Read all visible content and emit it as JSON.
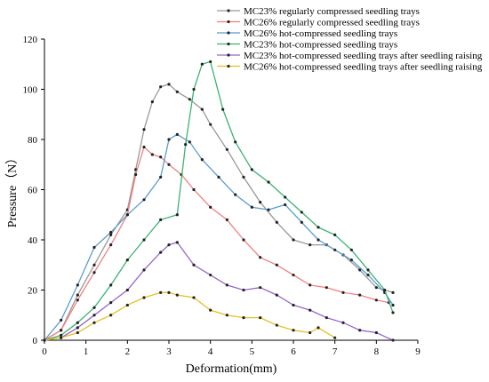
{
  "chart_data": {
    "type": "line",
    "xlabel": "Deformation(mm)",
    "ylabel": "Pressure（N）",
    "xlim": [
      0,
      9
    ],
    "ylim": [
      0,
      120
    ],
    "xticks": [
      0,
      1,
      2,
      3,
      4,
      5,
      6,
      7,
      8,
      9
    ],
    "yticks": [
      0,
      20,
      40,
      60,
      80,
      100,
      120
    ],
    "grid": false,
    "legend_position": "top-right",
    "series": [
      {
        "name": "MC23% regularly compressed seedling trays",
        "color": "#999999",
        "x": [
          0.0,
          0.4,
          0.8,
          1.2,
          1.6,
          2.0,
          2.2,
          2.4,
          2.6,
          2.8,
          3.0,
          3.2,
          3.5,
          3.8,
          4.0,
          4.4,
          4.8,
          5.2,
          5.6,
          6.0,
          6.4,
          6.8,
          7.2,
          7.6,
          8.0,
          8.4
        ],
        "y": [
          0,
          4,
          18,
          30,
          42,
          52,
          68,
          84,
          95,
          101,
          102,
          99,
          96,
          92,
          86,
          76,
          65,
          55,
          47,
          40,
          38,
          38,
          34,
          28,
          21,
          19
        ]
      },
      {
        "name": "MC26% regularly compressed seedling trays",
        "color": "#f08080",
        "x": [
          0.0,
          0.4,
          0.8,
          1.2,
          1.6,
          2.0,
          2.2,
          2.4,
          2.6,
          2.8,
          3.0,
          3.3,
          3.6,
          4.0,
          4.4,
          4.8,
          5.2,
          5.6,
          6.0,
          6.4,
          6.8,
          7.2,
          7.6,
          8.0,
          8.3
        ],
        "y": [
          0,
          4,
          16,
          27,
          38,
          50,
          66,
          77,
          74,
          73,
          70,
          66,
          60,
          53,
          48,
          40,
          33,
          30,
          26,
          22,
          21,
          19,
          18,
          16,
          15
        ]
      },
      {
        "name": "MC26% hot-compressed seedling trays",
        "color": "#5b9bd5",
        "x": [
          0.0,
          0.4,
          0.8,
          1.2,
          1.6,
          2.0,
          2.4,
          2.8,
          3.0,
          3.2,
          3.5,
          3.8,
          4.2,
          4.6,
          5.0,
          5.4,
          5.8,
          6.2,
          6.6,
          7.0,
          7.4,
          7.8,
          8.2,
          8.4
        ],
        "y": [
          0,
          8,
          22,
          37,
          43,
          50,
          56,
          65,
          80,
          82,
          79,
          72,
          65,
          58,
          53,
          52,
          54,
          47,
          40,
          36,
          32,
          26,
          19,
          14
        ]
      },
      {
        "name": "MC23% hot-compressed seedling trays",
        "color": "#3cb371",
        "x": [
          0.0,
          0.4,
          0.8,
          1.2,
          1.6,
          2.0,
          2.4,
          2.8,
          3.2,
          3.4,
          3.6,
          3.8,
          4.0,
          4.3,
          4.6,
          5.0,
          5.4,
          5.8,
          6.2,
          6.6,
          7.0,
          7.4,
          7.8,
          8.2,
          8.4
        ],
        "y": [
          0,
          2,
          7,
          13,
          22,
          32,
          40,
          48,
          50,
          78,
          100,
          110,
          111,
          92,
          79,
          68,
          63,
          57,
          51,
          45,
          42,
          36,
          28,
          20,
          11
        ]
      },
      {
        "name": "MC23% hot-compressed seedling trays after seedling raising",
        "color": "#9966cc",
        "x": [
          0.0,
          0.4,
          0.8,
          1.2,
          1.6,
          2.0,
          2.4,
          2.8,
          3.0,
          3.2,
          3.6,
          4.0,
          4.4,
          4.8,
          5.2,
          5.6,
          6.0,
          6.4,
          6.8,
          7.2,
          7.6,
          8.0,
          8.4
        ],
        "y": [
          0,
          1,
          5,
          10,
          15,
          20,
          28,
          35,
          38,
          39,
          30,
          26,
          22,
          20,
          21,
          18,
          14,
          12,
          9,
          7,
          4,
          3,
          0
        ]
      },
      {
        "name": "MC26% hot-compressed seedling trays after seedling raising",
        "color": "#e8c020",
        "x": [
          0.0,
          0.4,
          0.8,
          1.2,
          1.6,
          2.0,
          2.4,
          2.8,
          3.0,
          3.2,
          3.6,
          4.0,
          4.4,
          4.8,
          5.2,
          5.6,
          6.0,
          6.4,
          6.6,
          7.0
        ],
        "y": [
          0,
          1,
          3,
          7,
          10,
          14,
          17,
          19,
          19,
          18,
          17,
          12,
          10,
          9,
          9,
          6,
          4,
          3,
          5,
          1
        ]
      }
    ]
  }
}
